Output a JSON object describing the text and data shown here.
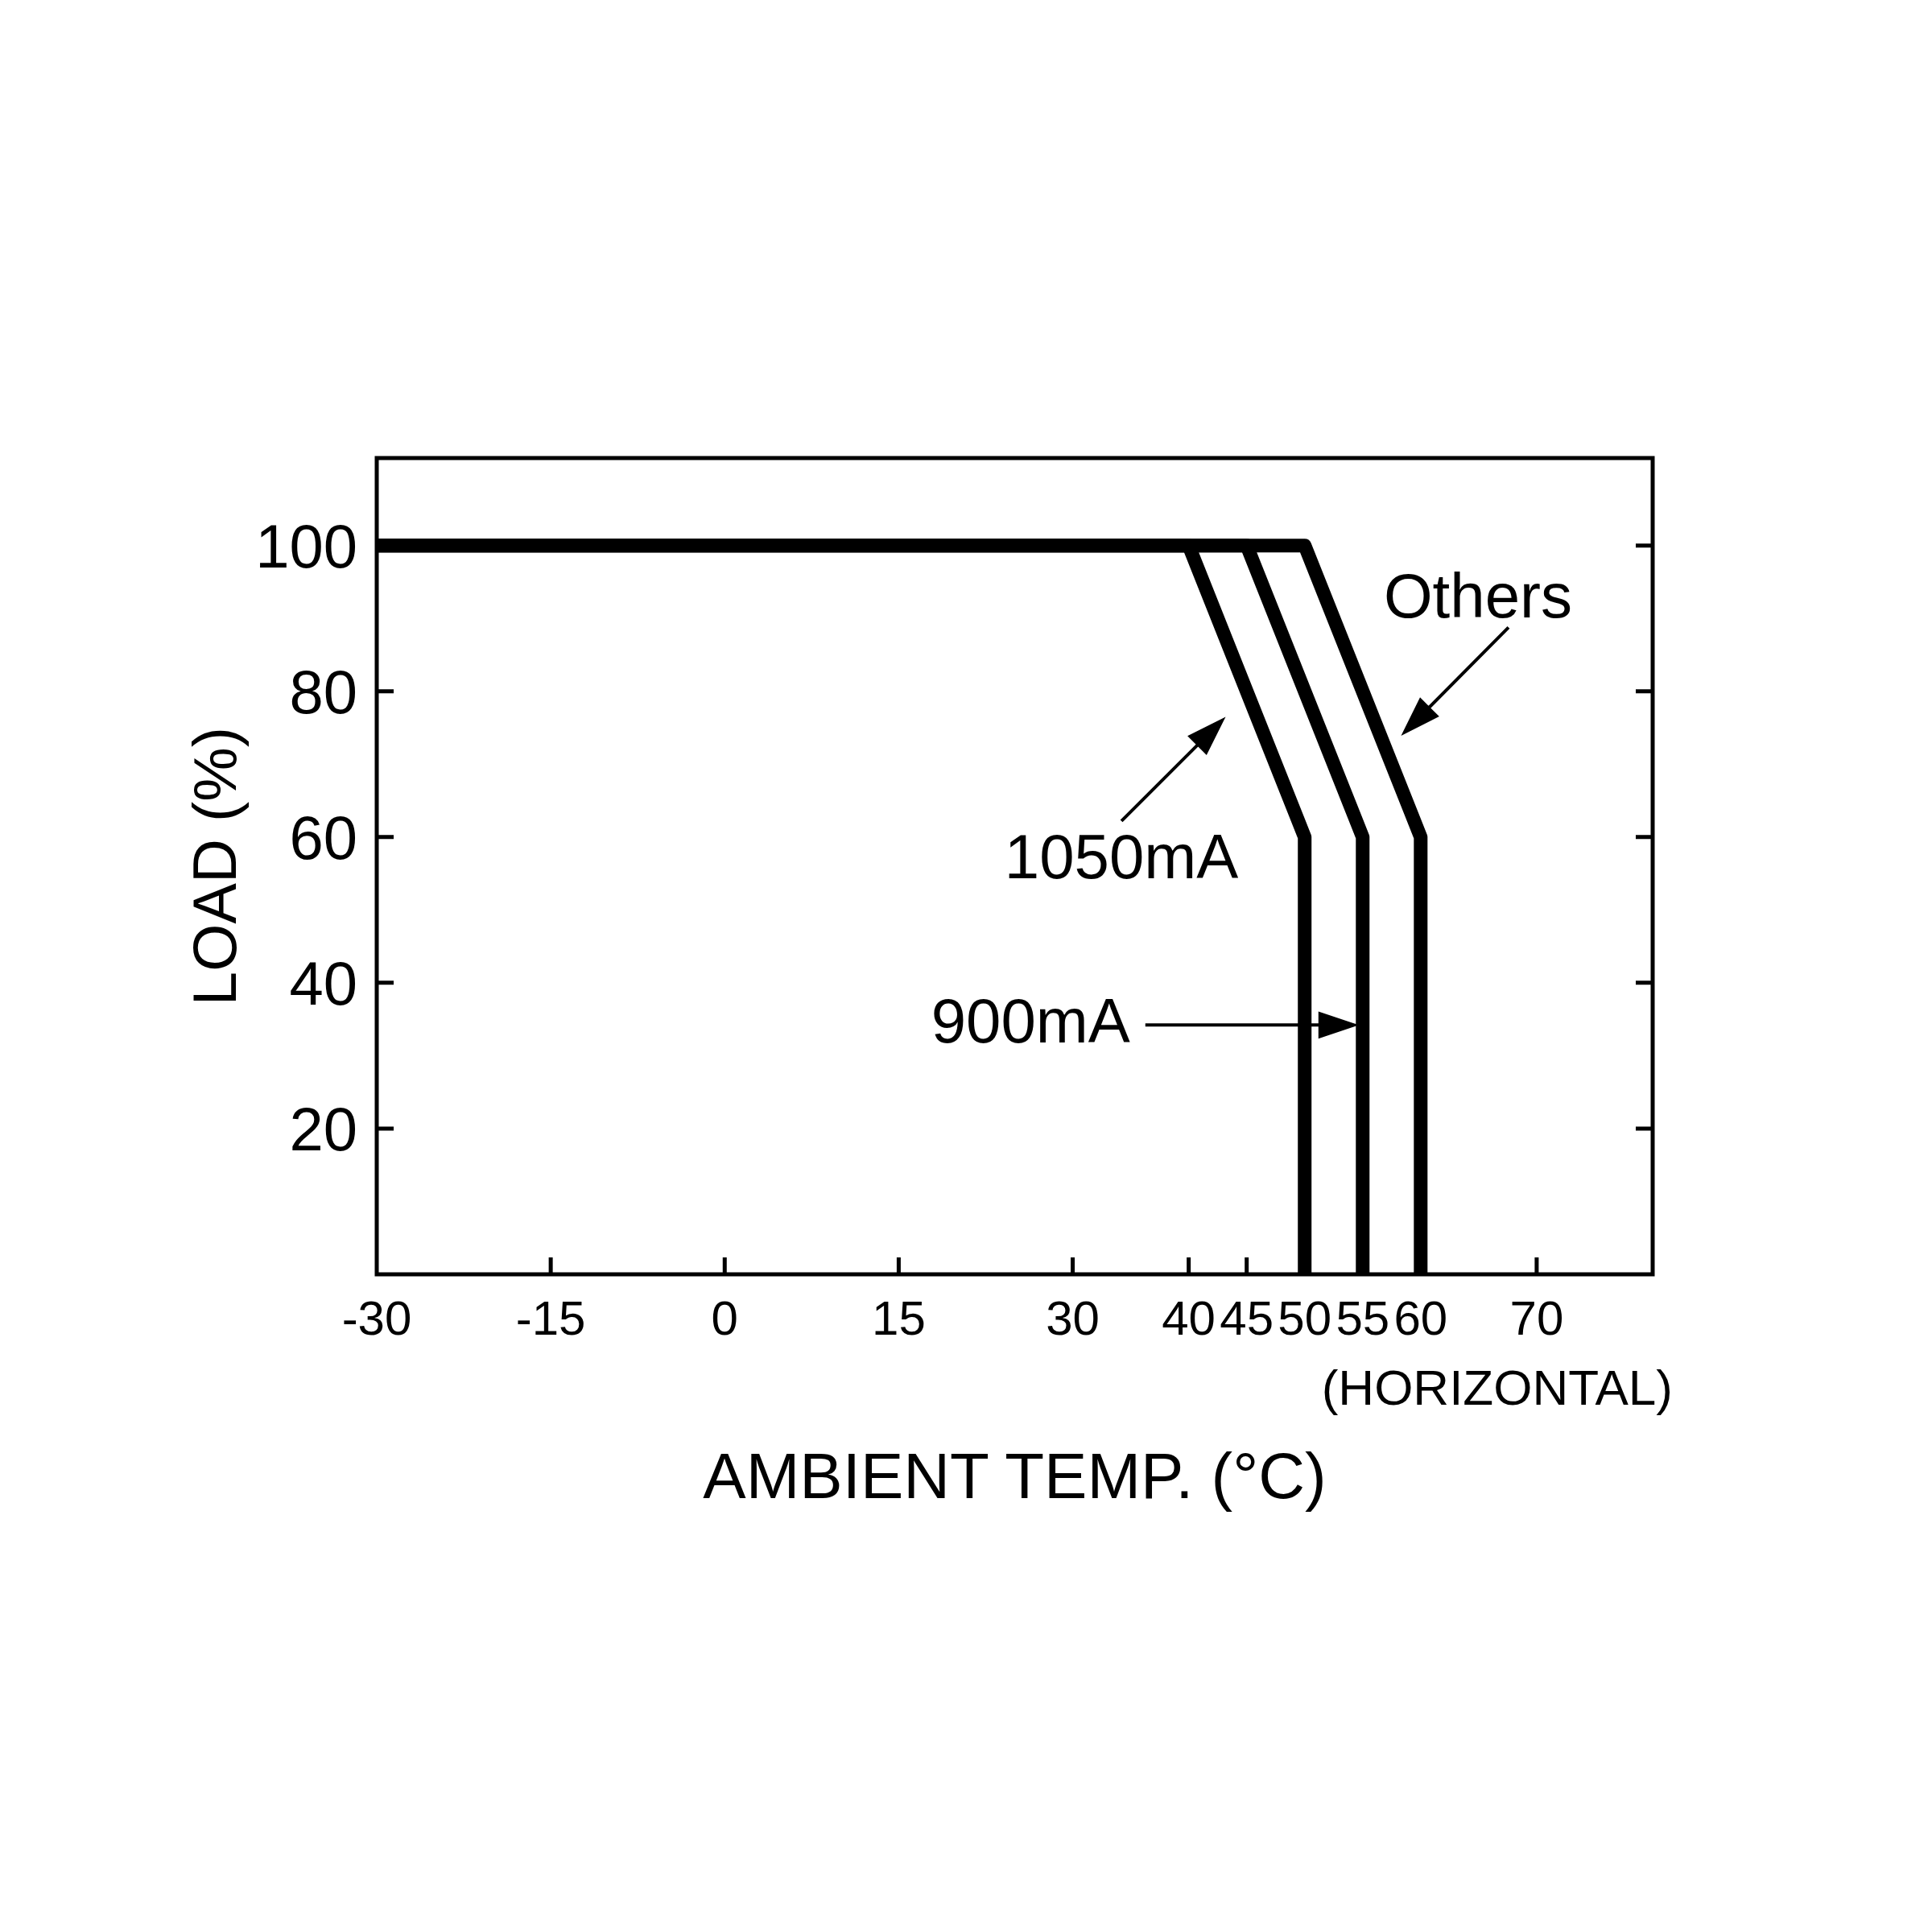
{
  "chart_data": {
    "type": "line",
    "xlabel": "AMBIENT TEMP. (°C)",
    "ylabel": "LOAD (%)",
    "annotations": [
      "(HORIZONTAL)"
    ],
    "xlim": [
      -30,
      80
    ],
    "xticks": [
      -30,
      -15,
      0,
      15,
      30,
      40,
      45,
      50,
      55,
      60,
      70
    ],
    "ylim": [
      0,
      112
    ],
    "yticks": [
      20,
      40,
      60,
      80,
      100
    ],
    "line_style": "solid",
    "series": [
      {
        "name": "1050mA",
        "color": "#000000",
        "x": [
          -30,
          40,
          50,
          50
        ],
        "values": [
          100,
          100,
          60,
          0
        ]
      },
      {
        "name": "900mA",
        "color": "#000000",
        "x": [
          -30,
          45,
          55,
          55
        ],
        "values": [
          100,
          100,
          60,
          0
        ]
      },
      {
        "name": "Others",
        "color": "#000000",
        "x": [
          -30,
          50,
          60,
          60
        ],
        "values": [
          100,
          100,
          60,
          0
        ]
      }
    ]
  }
}
